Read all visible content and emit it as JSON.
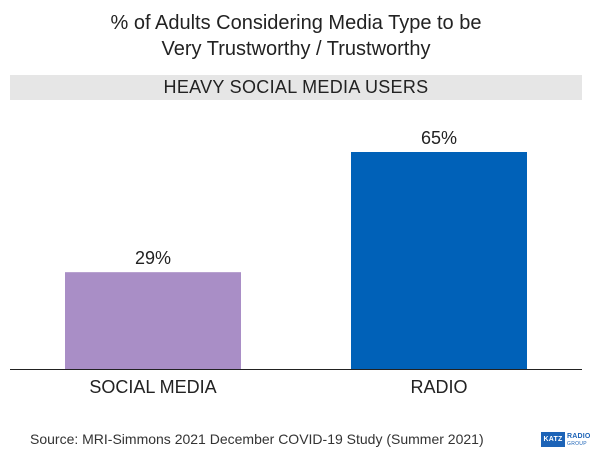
{
  "title": {
    "line1": "% of Adults Considering Media Type to be",
    "line2": "Very Trustworthy / Trustworthy"
  },
  "banner": "HEAVY SOCIAL MEDIA USERS",
  "source": "Source: MRI-Simmons 2021 December COVID-19 Study (Summer 2021)",
  "logo": {
    "box": "KATZ",
    "word": "RADIO",
    "sub": "GROUP"
  },
  "colors": {
    "social_media": "#a98ec6",
    "radio": "#0061b8",
    "banner_bg": "#e6e6e6",
    "axis": "#222222"
  },
  "chart_data": {
    "type": "bar",
    "categories": [
      "SOCIAL MEDIA",
      "RADIO"
    ],
    "values": [
      29,
      65
    ],
    "value_labels": [
      "29%",
      "65%"
    ],
    "colors": [
      "#a98ec6",
      "#0061b8"
    ],
    "title": "% of Adults Considering Media Type to be Very Trustworthy / Trustworthy",
    "subtitle": "HEAVY SOCIAL MEDIA USERS",
    "ylim": [
      0,
      100
    ],
    "grid": false,
    "legend": "none"
  }
}
